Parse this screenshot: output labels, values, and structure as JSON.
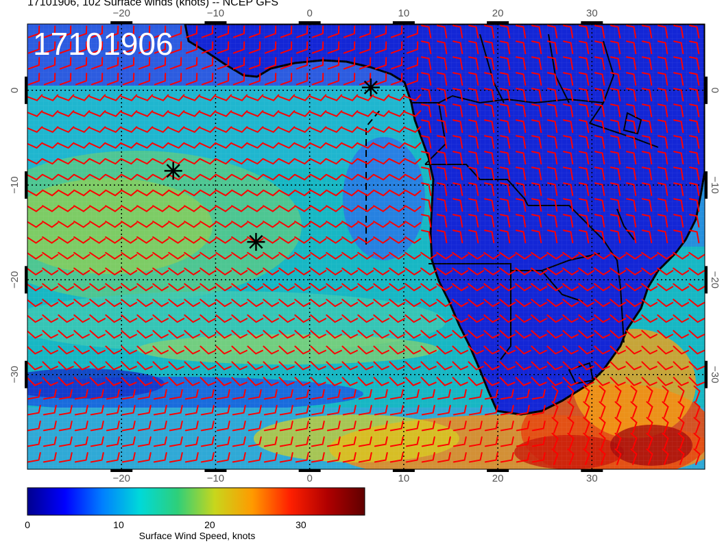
{
  "title": "17101906, 102 Surface winds (knots) -- NCEP GFS",
  "panel_label": "17101906",
  "map": {
    "lon_range": [
      -30,
      42
    ],
    "lat_range": [
      -40,
      7
    ],
    "lon_ticks": [
      -20,
      -10,
      0,
      10,
      20,
      30
    ],
    "lon_tick_labels": [
      "−20",
      "−10",
      "0",
      "10",
      "20",
      "30"
    ],
    "lat_ticks": [
      0,
      -10,
      -20,
      -30
    ],
    "lat_tick_labels": [
      "0",
      "−10",
      "−20",
      "−30"
    ],
    "grid": true,
    "markers": [
      {
        "name": "star-marker",
        "lon": -14.5,
        "lat": -8.5
      },
      {
        "name": "star-marker",
        "lon": -5.7,
        "lat": -16.0
      },
      {
        "name": "star-marker",
        "lon": 6.5,
        "lat": 0.3
      }
    ],
    "land_color": "#1326d6",
    "barb_color": "#ff0000"
  },
  "colorbar": {
    "label": "Surface Wind Speed, knots",
    "min": 0,
    "max": 37,
    "ticks": [
      0,
      10,
      20,
      30
    ],
    "tick_labels": [
      "0",
      "10",
      "20",
      "30"
    ],
    "stops": [
      "#00008f",
      "#0000ff",
      "#007fff",
      "#00d9d9",
      "#2ecf7a",
      "#c8d61c",
      "#ff9a00",
      "#ff2000",
      "#b00000",
      "#600000"
    ]
  }
}
